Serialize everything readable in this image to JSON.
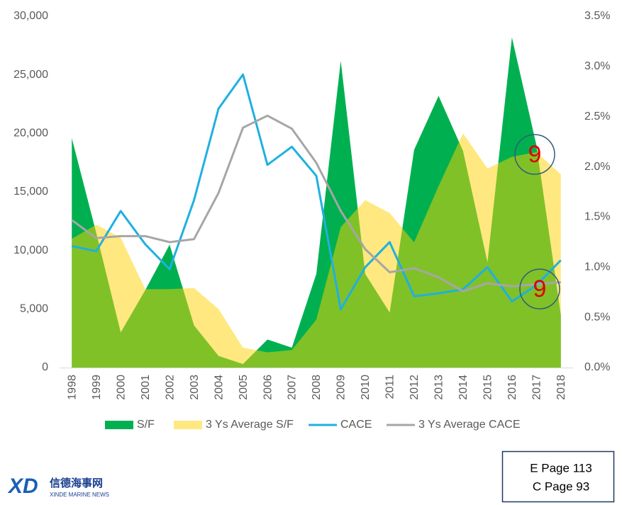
{
  "chart_data": {
    "type": "combo",
    "categories": [
      "1998",
      "1999",
      "2000",
      "2001",
      "2002",
      "2003",
      "2004",
      "2005",
      "2006",
      "2007",
      "2008",
      "2009",
      "2010",
      "2011",
      "2012",
      "2013",
      "2014",
      "2015",
      "2016",
      "2017",
      "2018"
    ],
    "series": [
      {
        "name": "S/F",
        "type": "area",
        "color": "#00b050",
        "values": [
          19600,
          11500,
          3000,
          6600,
          10500,
          3600,
          1000,
          300,
          2400,
          1700,
          8000,
          26200,
          8000,
          4700,
          18600,
          23200,
          18500,
          9000,
          28200,
          19000,
          4500
        ]
      },
      {
        "name": "3 Ys Average S/F",
        "type": "area",
        "color": "#ffd200",
        "values": [
          11000,
          12200,
          11100,
          6700,
          6700,
          6800,
          5000,
          1700,
          1300,
          1500,
          4100,
          12000,
          14300,
          13200,
          10700,
          15500,
          20000,
          17000,
          18000,
          18400,
          16500
        ]
      },
      {
        "name": "CACE",
        "type": "line",
        "axis": "y2",
        "color": "#1fb0e0",
        "values": [
          1.21,
          1.16,
          1.56,
          1.23,
          0.98,
          1.67,
          2.58,
          2.92,
          2.02,
          2.2,
          1.91,
          0.58,
          1.0,
          1.25,
          0.71,
          0.74,
          0.78,
          1.0,
          0.66,
          0.82,
          1.07
        ]
      },
      {
        "name": "3 Ys Average CACE",
        "type": "line",
        "axis": "y2",
        "color": "#a6a6a6",
        "values": [
          1.47,
          1.29,
          1.31,
          1.31,
          1.25,
          1.28,
          1.74,
          2.39,
          2.51,
          2.38,
          2.04,
          1.56,
          1.18,
          0.95,
          0.99,
          0.9,
          0.76,
          0.84,
          0.81,
          0.83,
          0.85
        ]
      }
    ],
    "ylim": [
      0,
      30000
    ],
    "yticks": [
      0,
      {
        "value": 5000,
        "label": "5,000"
      },
      {
        "value": 10000,
        "label": "10,000"
      },
      {
        "value": 15000,
        "label": "15,000"
      },
      {
        "value": 20000,
        "label": "20,000"
      },
      {
        "value": 25000,
        "label": "25,000"
      },
      {
        "value": 30000,
        "label": "30,000"
      }
    ],
    "y2lim": [
      0,
      3.5
    ],
    "y2ticks": [
      {
        "value": 0,
        "label": "0.0%"
      },
      {
        "value": 0.5,
        "label": "0.5%"
      },
      {
        "value": 1,
        "label": "1.0%"
      },
      {
        "value": 1.5,
        "label": "1.5%"
      },
      {
        "value": 2,
        "label": "2.0%"
      },
      {
        "value": 2.5,
        "label": "2.5%"
      },
      {
        "value": 3,
        "label": "3.0%"
      },
      {
        "value": 3.5,
        "label": "3.5%"
      }
    ],
    "legend": "bottom",
    "annotations": [
      "9",
      "9"
    ]
  },
  "page_refs": [
    "E Page 113",
    "C Page 93"
  ],
  "logo": {
    "mark": "XD",
    "name": "信德海事网",
    "subtitle": "XINDE MARINE NEWS"
  }
}
